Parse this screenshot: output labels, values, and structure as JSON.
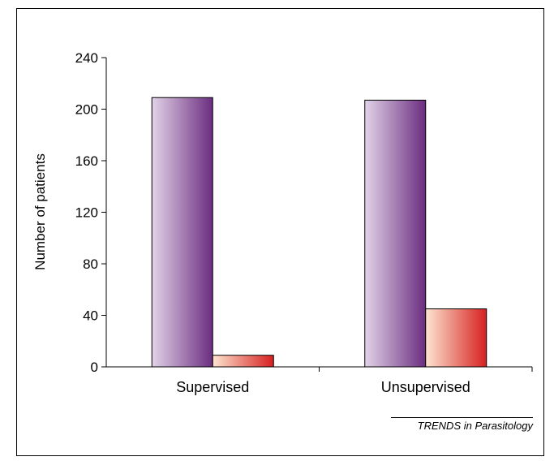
{
  "chart_data": {
    "type": "bar",
    "title": "",
    "categories": [
      "Supervised",
      "Unsupervised"
    ],
    "series": [
      {
        "values": [
          209,
          207
        ],
        "color_light": "#e2d3e8",
        "color_dark": "#6b2d80"
      },
      {
        "values": [
          9,
          45
        ],
        "color_light": "#fde5d0",
        "color_dark": "#d62020"
      }
    ],
    "ylabel": "Number of patients",
    "xlabel": "",
    "ylim": [
      0,
      240
    ],
    "yticks": [
      0,
      40,
      80,
      120,
      160,
      200,
      240
    ],
    "grid": false,
    "legend": "none"
  },
  "credit": "TRENDS in Parasitology"
}
